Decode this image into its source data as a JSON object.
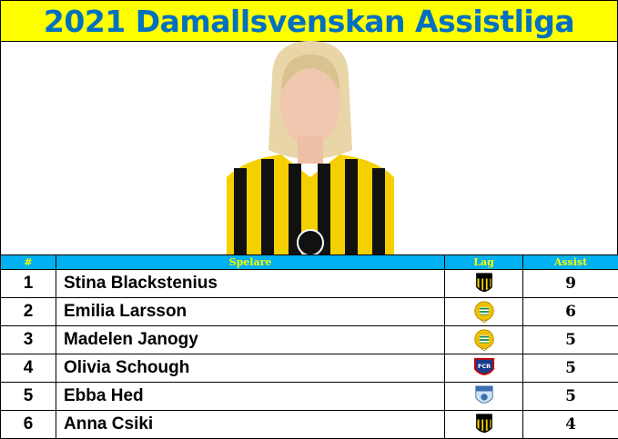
{
  "title": "2021 Damallsvenskan Assistliga",
  "columns": [
    "#",
    "Spelare",
    "Lag",
    "Assist"
  ],
  "rows": [
    {
      "rank": "1",
      "player": "Stina Blackstenius",
      "team_logo": "hacken-logo",
      "assists": "9"
    },
    {
      "rank": "2",
      "player": "Emilia Larsson",
      "team_logo": "hammarby-logo",
      "assists": "6"
    },
    {
      "rank": "3",
      "player": "Madelen Janogy",
      "team_logo": "hammarby-logo",
      "assists": "5"
    },
    {
      "rank": "4",
      "player": "Olivia Schough",
      "team_logo": "fc-rosengard-logo",
      "assists": "5"
    },
    {
      "rank": "5",
      "player": "Ebba Hed",
      "team_logo": "vaxjo-logo",
      "assists": "5"
    },
    {
      "rank": "6",
      "player": "Anna Csiki",
      "team_logo": "hacken-logo",
      "assists": "4"
    }
  ],
  "colors": {
    "title_bg": "#ffff00",
    "title_text": "#0070c0",
    "header_bg": "#00b0f0",
    "header_text": "#ffff00"
  }
}
